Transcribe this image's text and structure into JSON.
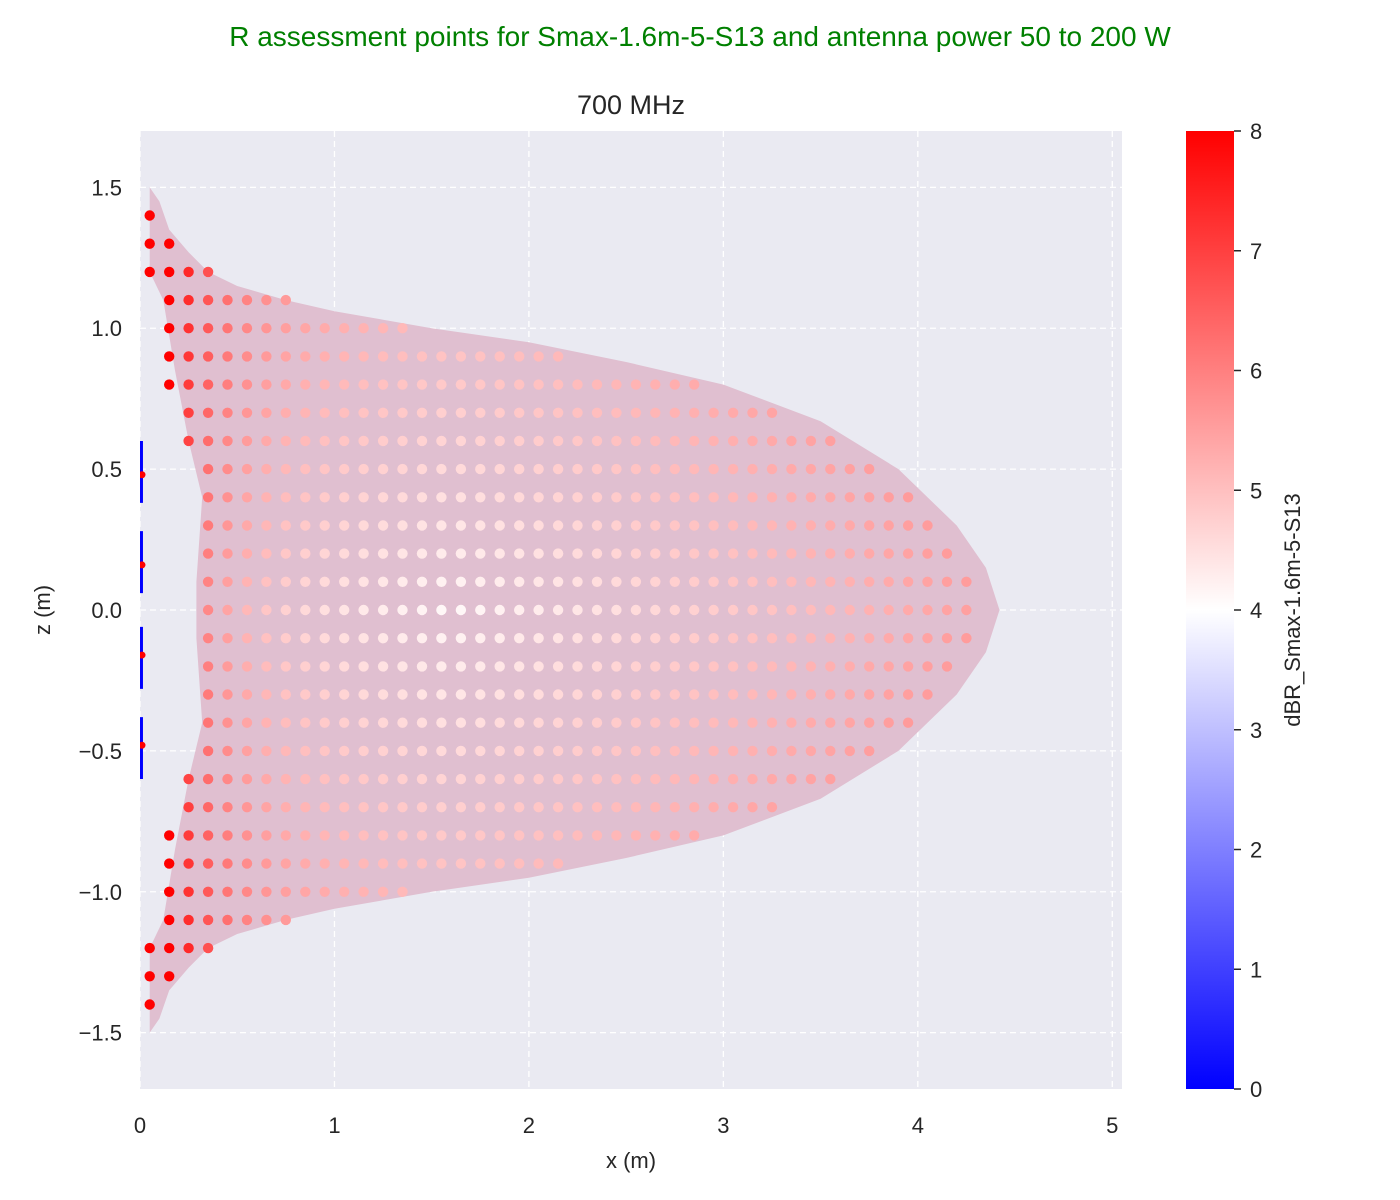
{
  "chart_data": {
    "type": "scatter",
    "suptitle": "R assessment points for Smax-1.6m-5-S13 and antenna power 50 to 200 W",
    "title": "700 MHz",
    "xlabel": "x (m)",
    "ylabel": "z (m)",
    "xlim": [
      0,
      5.05
    ],
    "ylim": [
      -1.7,
      1.7
    ],
    "xticks": [
      "0",
      "1",
      "2",
      "3",
      "4",
      "5"
    ],
    "yticks": [
      "−1.5",
      "−1.0",
      "−0.5",
      "0.0",
      "0.5",
      "1.0",
      "1.5"
    ],
    "xtick_values": [
      0,
      1,
      2,
      3,
      4,
      5
    ],
    "ytick_values": [
      -1.5,
      -1.0,
      -0.5,
      0.0,
      0.5,
      1.0,
      1.5
    ],
    "grid": true,
    "colorbar": {
      "label": "dBR_Smax-1.6m-5-S13",
      "range": [
        0,
        8
      ],
      "ticks": [
        "0",
        "1",
        "2",
        "3",
        "4",
        "5",
        "6",
        "7",
        "8"
      ],
      "tick_values": [
        0,
        1,
        2,
        3,
        4,
        5,
        6,
        7,
        8
      ],
      "colors": [
        "#0000ff",
        "#ffffff",
        "#ff0000"
      ]
    },
    "region_boundary": {
      "color": "#e0bfd0",
      "points": [
        [
          0.05,
          1.5
        ],
        [
          0.1,
          1.45
        ],
        [
          0.15,
          1.35
        ],
        [
          0.25,
          1.27
        ],
        [
          0.35,
          1.2
        ],
        [
          0.5,
          1.15
        ],
        [
          0.75,
          1.1
        ],
        [
          1.0,
          1.06
        ],
        [
          1.5,
          1.0
        ],
        [
          2.0,
          0.95
        ],
        [
          2.5,
          0.88
        ],
        [
          3.0,
          0.8
        ],
        [
          3.5,
          0.67
        ],
        [
          3.9,
          0.5
        ],
        [
          4.2,
          0.3
        ],
        [
          4.35,
          0.15
        ],
        [
          4.42,
          0.0
        ],
        [
          4.35,
          -0.15
        ],
        [
          4.2,
          -0.3
        ],
        [
          3.9,
          -0.5
        ],
        [
          3.5,
          -0.67
        ],
        [
          3.0,
          -0.8
        ],
        [
          2.5,
          -0.88
        ],
        [
          2.0,
          -0.95
        ],
        [
          1.5,
          -1.0
        ],
        [
          1.0,
          -1.06
        ],
        [
          0.75,
          -1.1
        ],
        [
          0.5,
          -1.15
        ],
        [
          0.35,
          -1.2
        ],
        [
          0.25,
          -1.27
        ],
        [
          0.15,
          -1.35
        ],
        [
          0.1,
          -1.45
        ],
        [
          0.05,
          -1.5
        ],
        [
          0.05,
          -1.2
        ],
        [
          0.12,
          -1.1
        ],
        [
          0.18,
          -0.85
        ],
        [
          0.25,
          -0.6
        ],
        [
          0.32,
          -0.4
        ],
        [
          0.29,
          -0.1
        ],
        [
          0.29,
          0.1
        ],
        [
          0.32,
          0.4
        ],
        [
          0.25,
          0.6
        ],
        [
          0.18,
          0.85
        ],
        [
          0.12,
          1.1
        ],
        [
          0.05,
          1.2
        ]
      ]
    },
    "antenna_segments": {
      "color": "#0000ff",
      "segments": [
        [
          0.38,
          0.6
        ],
        [
          0.06,
          0.28
        ],
        [
          -0.28,
          -0.06
        ],
        [
          -0.6,
          -0.38
        ]
      ]
    },
    "points": {
      "x_step": 0.1,
      "z_step": 0.1,
      "row_extents": [
        [
          1.4,
          0.05
        ],
        [
          1.3,
          0.15
        ],
        [
          1.2,
          0.35
        ],
        [
          1.1,
          0.75
        ],
        [
          1.0,
          1.35
        ],
        [
          0.9,
          2.15
        ],
        [
          0.8,
          2.85
        ],
        [
          0.7,
          3.25
        ],
        [
          0.6,
          3.55
        ],
        [
          0.5,
          3.75
        ],
        [
          0.4,
          3.95
        ],
        [
          0.3,
          4.05
        ],
        [
          0.2,
          4.15
        ],
        [
          0.1,
          4.25
        ],
        [
          0.0,
          4.25
        ]
      ],
      "inner_start": [
        [
          1.4,
          0.05
        ],
        [
          1.3,
          0.05
        ],
        [
          1.2,
          0.05
        ],
        [
          1.1,
          0.15
        ],
        [
          1.0,
          0.15
        ],
        [
          0.9,
          0.15
        ],
        [
          0.8,
          0.15
        ],
        [
          0.7,
          0.25
        ],
        [
          0.6,
          0.25
        ],
        [
          0.5,
          0.35
        ],
        [
          0.4,
          0.35
        ],
        [
          0.3,
          0.35
        ],
        [
          0.2,
          0.35
        ],
        [
          0.1,
          0.35
        ],
        [
          0.0,
          0.35
        ]
      ],
      "axis_points": [
        [
          0.0,
          0.48
        ],
        [
          0.0,
          0.16
        ],
        [
          0.0,
          -0.16
        ],
        [
          0.0,
          -0.48
        ]
      ],
      "value_model": "symmetric in z; dBR near 8 at antenna face, decreasing to about 4 near x=1.5, z=0"
    }
  }
}
